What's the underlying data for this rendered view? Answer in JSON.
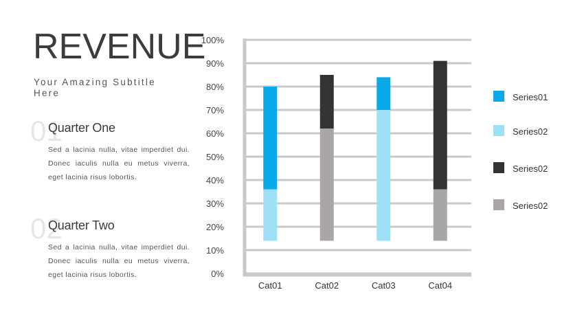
{
  "header": {
    "title": "REVENUE",
    "subtitle": "Your Amazing Subtitle Here"
  },
  "quarters": [
    {
      "number": "01",
      "title": "Quarter One",
      "body": "Sed a lacinia nulla, vitae imperdiet dui. Donec iaculis nulla eu metus viverra, eget lacinia risus lobortis."
    },
    {
      "number": "02",
      "title": "Quarter Two",
      "body": "Sed a lacinia nulla, vitae imperdiet dui. Donec iaculis nulla eu metus viverra, eget lacinia risus lobortis."
    }
  ],
  "chart_data": {
    "type": "bar",
    "stacked": true,
    "categories": [
      "Cat01",
      "Cat02",
      "Cat03",
      "Cat04"
    ],
    "y_ticks": [
      "0%",
      "10%",
      "20%",
      "30%",
      "40%",
      "50%",
      "60%",
      "70%",
      "80%",
      "90%",
      "100%"
    ],
    "ylim": [
      0,
      100
    ],
    "grid": true,
    "legend_position": "right",
    "series": [
      {
        "name": "Series01",
        "color": "#0aaaea",
        "values": [
          [
            36,
            80
          ],
          null,
          [
            70,
            84
          ],
          null
        ]
      },
      {
        "name": "Series02",
        "color": "#9ee0f8",
        "values": [
          [
            14,
            36
          ],
          null,
          [
            14,
            70
          ],
          null
        ]
      },
      {
        "name": "Series02",
        "color": "#333333",
        "values": [
          null,
          [
            62,
            85
          ],
          null,
          [
            36,
            91
          ]
        ]
      },
      {
        "name": "Series02",
        "color": "#a9a6a5",
        "values": [
          null,
          [
            14,
            62
          ],
          null,
          [
            14,
            36
          ]
        ]
      }
    ]
  }
}
